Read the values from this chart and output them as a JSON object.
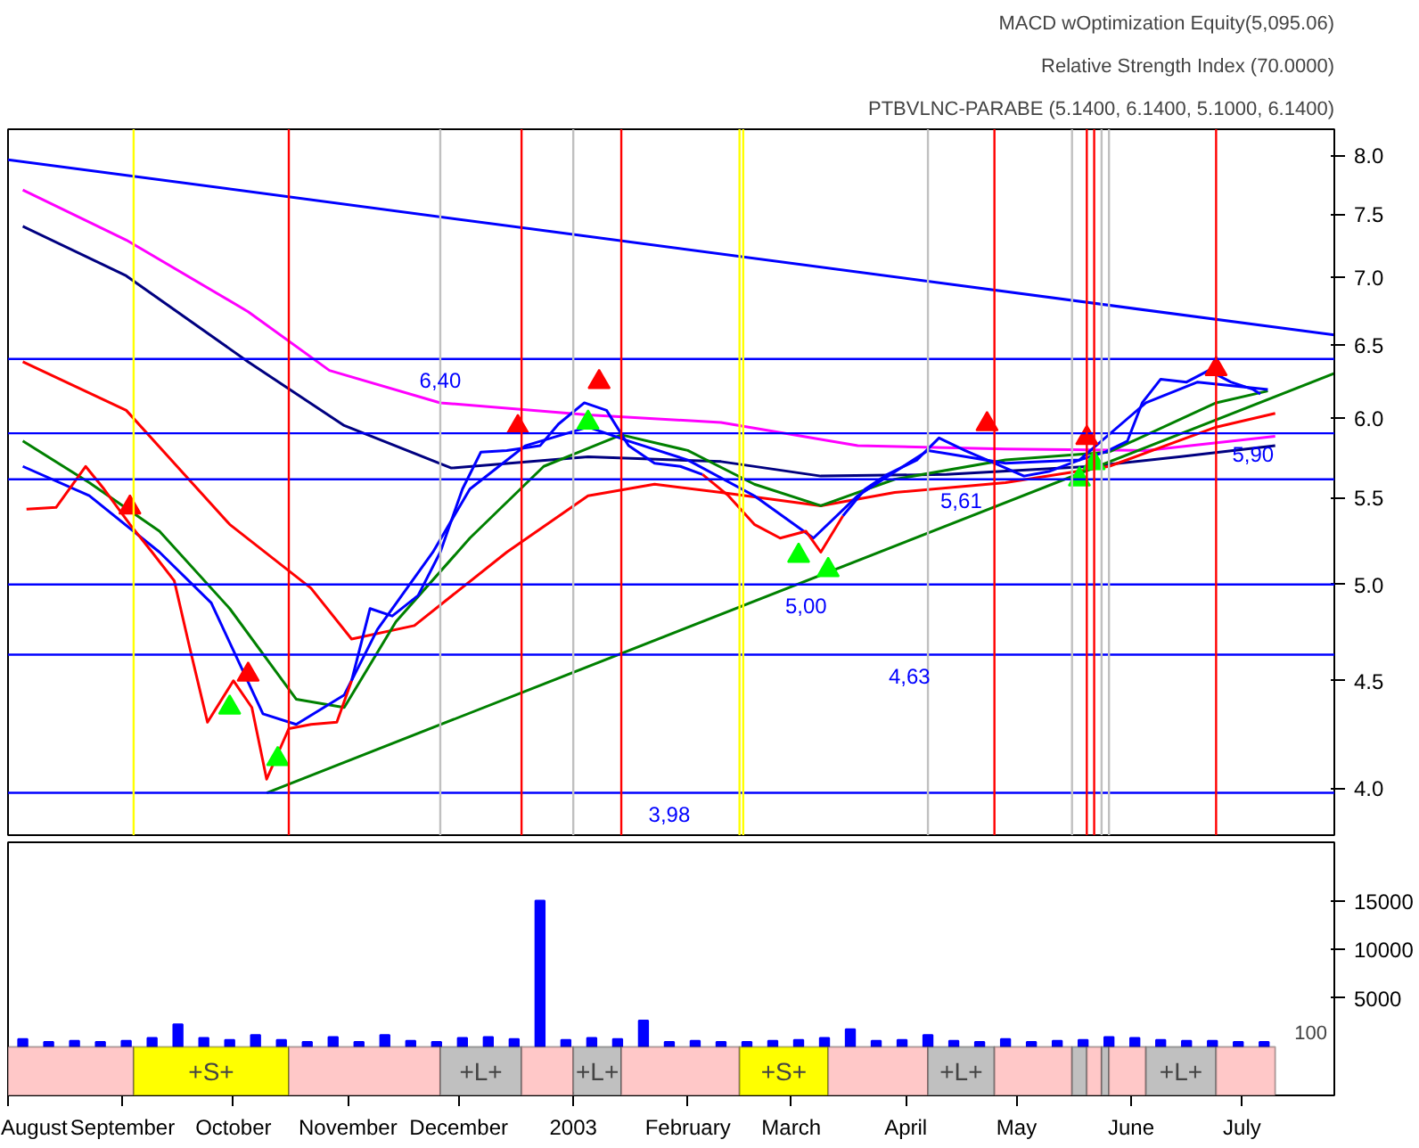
{
  "chart_data": [
    {
      "type": "line",
      "annotations": [
        "MACD wOptimization Equity(5,095.06)",
        "Relative Strength Index (70.0000)",
        "PTBVLNC-PARABE (5.1400, 6.1400, 5.1000, 6.1400)",
        {
          "text": "6,40",
          "x": "2002-11-26",
          "y": 6.4
        },
        {
          "text": "5,90",
          "x": "2003-07-04",
          "y": 5.9
        },
        {
          "text": "5,61",
          "x": "2003-04-16",
          "y": 5.61
        },
        {
          "text": "5,00",
          "x": "2003-03-05",
          "y": 5.0
        },
        {
          "text": "4,63",
          "x": "2003-04-02",
          "y": 4.63
        },
        {
          "text": "3,98",
          "x": "2003-01-27",
          "y": 3.98
        }
      ],
      "xlim": [
        "2002-08-01",
        "2003-07-26"
      ],
      "ylim": [
        3.8,
        8.23
      ],
      "log": true,
      "tick_labels": "y",
      "yticks": [
        {
          "value": 4,
          "label": "4.0"
        },
        {
          "value": 4.5,
          "label": "4.5"
        },
        {
          "value": 5,
          "label": "5.0"
        },
        {
          "value": 5.5,
          "label": "5.5"
        },
        {
          "value": 6,
          "label": "6.0"
        },
        {
          "value": 6.5,
          "label": "6.5"
        },
        {
          "value": 7,
          "label": "7.0"
        },
        {
          "value": 7.5,
          "label": "7.5"
        },
        {
          "value": 8,
          "label": "8.0"
        }
      ],
      "ref_lines": [
        {
          "axis": "y",
          "value": 6.4,
          "color": "#0000ff"
        },
        {
          "axis": "y",
          "value": 5.9,
          "color": "#0000ff"
        },
        {
          "axis": "y",
          "value": 5.61,
          "color": "#0000ff"
        },
        {
          "axis": "y",
          "value": 5.0,
          "color": "#0000ff"
        },
        {
          "axis": "y",
          "value": 4.63,
          "color": "#0000ff"
        },
        {
          "axis": "y",
          "value": 3.98,
          "color": "#0000ff"
        },
        {
          "axis": "x",
          "value": "2002-10-16",
          "color": "#ff0000"
        },
        {
          "axis": "x",
          "value": "2002-12-18",
          "color": "#ff0000"
        },
        {
          "axis": "x",
          "value": "2003-01-14",
          "color": "#ff0000"
        },
        {
          "axis": "x",
          "value": "2003-04-25",
          "color": "#ff0000"
        },
        {
          "axis": "x",
          "value": "2003-05-20",
          "color": "#ff0000"
        },
        {
          "axis": "x",
          "value": "2003-05-22",
          "color": "#ff0000"
        },
        {
          "axis": "x",
          "value": "2003-06-24",
          "color": "#ff0000"
        },
        {
          "axis": "x",
          "value": "2002-11-26",
          "color": "#c0c0c0"
        },
        {
          "axis": "x",
          "value": "2003-01-01",
          "color": "#c0c0c0"
        },
        {
          "axis": "x",
          "value": "2003-04-07",
          "color": "#c0c0c0"
        },
        {
          "axis": "x",
          "value": "2003-05-16",
          "color": "#c0c0c0"
        },
        {
          "axis": "x",
          "value": "2003-05-24",
          "color": "#c0c0c0"
        },
        {
          "axis": "x",
          "value": "2003-05-26",
          "color": "#c0c0c0"
        },
        {
          "axis": "x",
          "value": "2002-09-04",
          "color": "#ffff00"
        },
        {
          "axis": "x",
          "value": "2003-02-15",
          "color": "#ffff00"
        },
        {
          "axis": "x",
          "value": "2003-02-16",
          "color": "#ffff00"
        }
      ],
      "series": [
        {
          "color": "#ff00ff",
          "x": [
            "2002-08-05",
            "2002-09-02",
            "2002-10-05",
            "2002-10-27",
            "2002-11-26",
            "2003-01-05",
            "2003-02-10",
            "2003-03-19",
            "2003-04-28",
            "2003-06-05",
            "2003-07-10"
          ],
          "values": [
            7.7,
            7.29,
            6.74,
            6.32,
            6.1,
            6.02,
            5.97,
            5.82,
            5.8,
            5.79,
            5.88
          ]
        },
        {
          "color": "#000080",
          "x": [
            "2002-08-05",
            "2002-09-02",
            "2002-10-05",
            "2002-10-31",
            "2002-11-29",
            "2003-01-05",
            "2003-02-10",
            "2003-03-09",
            "2003-04-12",
            "2003-05-21",
            "2003-06-14",
            "2003-07-10"
          ],
          "values": [
            7.4,
            7.01,
            6.38,
            5.95,
            5.68,
            5.75,
            5.72,
            5.63,
            5.64,
            5.69,
            5.75,
            5.82
          ]
        },
        {
          "color": "#ff0000",
          "x": [
            "2002-08-05",
            "2002-09-02",
            "2002-09-30",
            "2002-10-22",
            "2002-11-02",
            "2002-11-19",
            "2002-12-14",
            "2003-01-05",
            "2003-01-23",
            "2003-02-10",
            "2003-03-09",
            "2003-03-29",
            "2003-04-28",
            "2003-05-26",
            "2003-06-24",
            "2003-07-10"
          ],
          "values": [
            6.38,
            6.05,
            5.34,
            4.98,
            4.71,
            4.78,
            5.18,
            5.51,
            5.58,
            5.53,
            5.45,
            5.53,
            5.59,
            5.69,
            5.94,
            6.03
          ]
        },
        {
          "color": "#008000",
          "x": [
            "2002-08-05",
            "2002-08-23",
            "2002-09-11",
            "2002-09-30",
            "2002-10-18",
            "2002-10-31",
            "2002-11-14",
            "2002-12-04",
            "2002-12-24",
            "2003-01-14",
            "2003-02-01",
            "2003-02-19",
            "2003-03-09",
            "2003-03-29",
            "2003-04-28",
            "2003-05-26",
            "2003-06-24",
            "2003-07-08"
          ],
          "values": [
            5.85,
            5.59,
            5.3,
            4.87,
            4.41,
            4.37,
            4.8,
            5.26,
            5.69,
            5.89,
            5.79,
            5.58,
            5.45,
            5.61,
            5.73,
            5.78,
            6.1,
            6.18
          ]
        },
        {
          "color": "#0000ff",
          "x": [
            "2002-08-05",
            "2002-08-23",
            "2002-09-11",
            "2002-09-25",
            "2002-10-09",
            "2002-10-18",
            "2002-10-31",
            "2002-11-09",
            "2002-11-24",
            "2002-12-04",
            "2002-12-19",
            "2003-01-05",
            "2003-01-16",
            "2003-02-01",
            "2003-02-19",
            "2003-03-07",
            "2003-03-19",
            "2003-04-07",
            "2003-04-28",
            "2003-05-18",
            "2003-06-05",
            "2003-06-19",
            "2003-07-08"
          ],
          "values": [
            5.69,
            5.51,
            5.18,
            4.9,
            4.34,
            4.29,
            4.43,
            4.76,
            5.18,
            5.55,
            5.82,
            5.94,
            5.85,
            5.73,
            5.51,
            5.26,
            5.51,
            5.79,
            5.71,
            5.73,
            6.1,
            6.24,
            6.19
          ]
        },
        {
          "color": "#ff0000",
          "x": [
            "2002-08-06",
            "2002-08-14",
            "2002-08-22",
            "2002-08-27",
            "2002-09-03",
            "2002-09-09",
            "2002-09-15",
            "2002-09-19",
            "2002-09-24",
            "2002-10-01",
            "2002-10-06",
            "2002-10-10",
            "2002-10-16",
            "2002-10-22",
            "2002-10-29",
            "2002-11-02"
          ],
          "values": [
            5.43,
            5.44,
            5.69,
            5.55,
            5.34,
            5.18,
            5.02,
            4.68,
            4.3,
            4.5,
            4.37,
            4.04,
            4.27,
            4.29,
            4.3,
            4.5
          ]
        },
        {
          "color": "#0000ff",
          "x": [
            "2002-11-02",
            "2002-11-07",
            "2002-11-13",
            "2002-11-20",
            "2002-11-26",
            "2002-12-02",
            "2002-12-07",
            "2002-12-14",
            "2002-12-23",
            "2002-12-28",
            "2003-01-04",
            "2003-01-10",
            "2003-01-16",
            "2003-01-23",
            "2003-01-30",
            "2003-02-05"
          ],
          "values": [
            4.5,
            4.87,
            4.83,
            4.94,
            5.18,
            5.55,
            5.78,
            5.79,
            5.82,
            5.96,
            6.1,
            6.05,
            5.82,
            5.71,
            5.69,
            5.64
          ]
        },
        {
          "color": "#ff0000",
          "x": [
            "2003-02-05",
            "2003-02-12",
            "2003-02-19",
            "2003-02-26",
            "2003-03-05",
            "2003-03-09",
            "2003-03-15"
          ],
          "values": [
            5.64,
            5.51,
            5.34,
            5.26,
            5.3,
            5.18,
            5.39
          ]
        },
        {
          "color": "#0000ff",
          "x": [
            "2003-03-15",
            "2003-03-21",
            "2003-03-27",
            "2003-04-04",
            "2003-04-10",
            "2003-04-17",
            "2003-04-25",
            "2003-05-03",
            "2003-05-10",
            "2003-05-18",
            "2003-05-25",
            "2003-05-31",
            "2003-06-04",
            "2003-06-09",
            "2003-06-16",
            "2003-06-22",
            "2003-06-28",
            "2003-07-04",
            "2003-07-06"
          ],
          "values": [
            5.39,
            5.55,
            5.64,
            5.73,
            5.87,
            5.79,
            5.71,
            5.63,
            5.66,
            5.73,
            5.78,
            5.85,
            6.1,
            6.26,
            6.24,
            6.32,
            6.24,
            6.19,
            6.16
          ]
        },
        {
          "color": "#008000",
          "x": [
            "2002-10-10",
            "2003-07-26"
          ],
          "values": [
            3.98,
            6.3
          ]
        },
        {
          "color": "#0000ff",
          "x": [
            "2002-08-01",
            "2003-07-26"
          ],
          "values": [
            7.96,
            6.57
          ]
        },
        {
          "type": "scatter",
          "marker": "triangle",
          "color": "#00ff00",
          "x": [
            "2002-09-30",
            "2002-10-13",
            "2003-01-05",
            "2003-03-03",
            "2003-03-11",
            "2003-05-18",
            "2003-05-22"
          ],
          "values": [
            4.37,
            4.13,
            5.97,
            5.16,
            5.08,
            5.61,
            5.71
          ]
        },
        {
          "type": "scatter",
          "marker": "triangle",
          "color": "#ff0000",
          "x": [
            "2002-09-03",
            "2002-10-05",
            "2002-12-17",
            "2003-01-08",
            "2003-04-23",
            "2003-05-20",
            "2003-06-24"
          ],
          "values": [
            5.44,
            4.53,
            5.94,
            6.24,
            5.96,
            5.87,
            6.33
          ]
        }
      ]
    },
    {
      "type": "bar",
      "color": "#0000ff",
      "annotations": [
        "100"
      ],
      "xlim": [
        "2002-08-01",
        "2003-07-26"
      ],
      "ylim": [
        -5000,
        21000
      ],
      "yticks": [
        5000,
        10000,
        15000
      ],
      "xticks": [
        {
          "value": "2002-08-01",
          "label": "August"
        },
        {
          "value": "2002-09-01",
          "label": "September"
        },
        {
          "value": "2002-10-01",
          "label": "October"
        },
        {
          "value": "2002-11-01",
          "label": "November"
        },
        {
          "value": "2002-12-01",
          "label": "December"
        },
        {
          "value": "2003-01-01",
          "label": "2003"
        },
        {
          "value": "2003-02-01",
          "label": "February"
        },
        {
          "value": "2003-03-01",
          "label": "March"
        },
        {
          "value": "2003-04-01",
          "label": "April"
        },
        {
          "value": "2003-05-01",
          "label": "May"
        },
        {
          "value": "2003-06-01",
          "label": "June"
        },
        {
          "value": "2003-07-01",
          "label": "July"
        }
      ],
      "x": [
        "2002-08-05",
        "2002-08-12",
        "2002-08-19",
        "2002-08-26",
        "2002-09-02",
        "2002-09-09",
        "2002-09-16",
        "2002-09-23",
        "2002-09-30",
        "2002-10-07",
        "2002-10-14",
        "2002-10-21",
        "2002-10-28",
        "2002-11-04",
        "2002-11-11",
        "2002-11-18",
        "2002-11-25",
        "2002-12-02",
        "2002-12-09",
        "2002-12-16",
        "2002-12-23",
        "2002-12-30",
        "2003-01-06",
        "2003-01-13",
        "2003-01-20",
        "2003-01-27",
        "2003-02-03",
        "2003-02-10",
        "2003-02-17",
        "2003-02-24",
        "2003-03-03",
        "2003-03-10",
        "2003-03-17",
        "2003-03-24",
        "2003-03-31",
        "2003-04-07",
        "2003-04-14",
        "2003-04-21",
        "2003-04-28",
        "2003-05-05",
        "2003-05-12",
        "2003-05-19",
        "2003-05-26",
        "2003-06-02",
        "2003-06-09",
        "2003-06-16",
        "2003-06-23",
        "2003-06-30",
        "2003-07-07"
      ],
      "values": [
        800,
        500,
        600,
        500,
        600,
        900,
        2300,
        900,
        700,
        1200,
        700,
        500,
        1000,
        500,
        1200,
        600,
        500,
        900,
        1000,
        800,
        15000,
        700,
        900,
        800,
        2700,
        500,
        600,
        500,
        500,
        600,
        700,
        900,
        1800,
        600,
        700,
        1200,
        600,
        500,
        800,
        500,
        600,
        700,
        1000,
        900,
        700,
        600,
        600,
        500,
        500
      ],
      "bands": [
        {
          "axis": "x",
          "from": "2002-08-01",
          "to": "2002-09-04",
          "color": "#ffc8c8"
        },
        {
          "axis": "x",
          "from": "2002-09-04",
          "to": "2002-10-16",
          "label": "+S+",
          "color": "#ffff00"
        },
        {
          "axis": "x",
          "from": "2002-10-16",
          "to": "2002-11-26",
          "color": "#ffc8c8"
        },
        {
          "axis": "x",
          "from": "2002-11-26",
          "to": "2002-12-18",
          "label": "+L+",
          "color": "#c0c0c0"
        },
        {
          "axis": "x",
          "from": "2002-12-18",
          "to": "2003-01-01",
          "color": "#ffc8c8"
        },
        {
          "axis": "x",
          "from": "2003-01-01",
          "to": "2003-01-14",
          "label": "+L+",
          "color": "#c0c0c0"
        },
        {
          "axis": "x",
          "from": "2003-01-14",
          "to": "2003-02-15",
          "color": "#ffc8c8"
        },
        {
          "axis": "x",
          "from": "2003-02-15",
          "to": "2003-03-11",
          "label": "+S+",
          "color": "#ffff00"
        },
        {
          "axis": "x",
          "from": "2003-03-11",
          "to": "2003-04-07",
          "color": "#ffc8c8"
        },
        {
          "axis": "x",
          "from": "2003-04-07",
          "to": "2003-04-25",
          "label": "+L+",
          "color": "#c0c0c0"
        },
        {
          "axis": "x",
          "from": "2003-04-25",
          "to": "2003-05-16",
          "color": "#ffc8c8"
        },
        {
          "axis": "x",
          "from": "2003-05-16",
          "to": "2003-05-20",
          "color": "#c0c0c0"
        },
        {
          "axis": "x",
          "from": "2003-05-20",
          "to": "2003-05-24",
          "color": "#ffc8c8"
        },
        {
          "axis": "x",
          "from": "2003-05-24",
          "to": "2003-05-26",
          "color": "#c0c0c0"
        },
        {
          "axis": "x",
          "from": "2003-05-26",
          "to": "2003-06-05",
          "color": "#ffc8c8"
        },
        {
          "axis": "x",
          "from": "2003-06-05",
          "to": "2003-06-24",
          "label": "+L+",
          "color": "#c0c0c0"
        },
        {
          "axis": "x",
          "from": "2003-06-24",
          "to": "2003-07-10",
          "color": "#ffc8c8"
        }
      ]
    }
  ]
}
